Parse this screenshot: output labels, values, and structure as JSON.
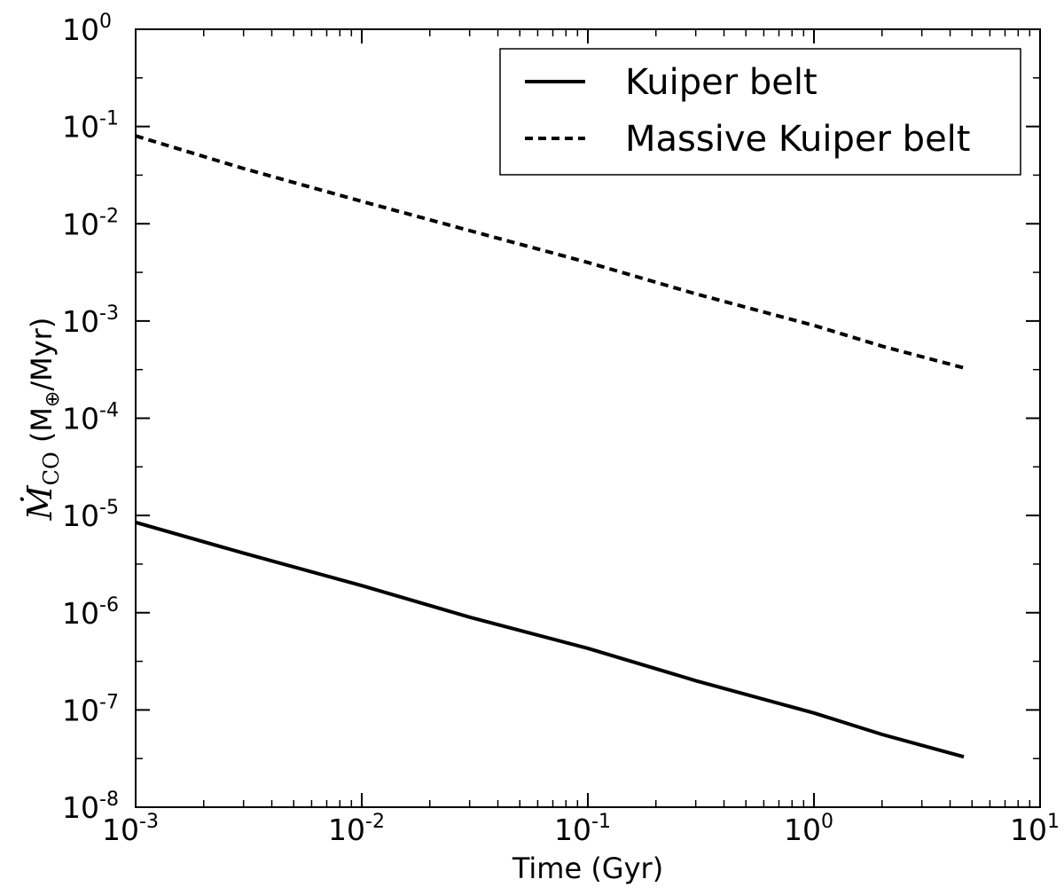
{
  "chart_data": {
    "type": "line",
    "xlabel": "Time (Gyr)",
    "ylabel": {
      "symbol": "Ṁ",
      "subscript": "CO",
      "unit_open": " (M",
      "unit_sub": "⊕",
      "unit_close": "/Myr)"
    },
    "xscale": "log",
    "yscale": "log",
    "xlim": [
      0.001,
      10
    ],
    "ylim": [
      1e-08,
      1
    ],
    "x_ticks": [
      {
        "base": "10",
        "exp": "-3"
      },
      {
        "base": "10",
        "exp": "-2"
      },
      {
        "base": "10",
        "exp": "-1"
      },
      {
        "base": "10",
        "exp": "0"
      },
      {
        "base": "10",
        "exp": "1"
      }
    ],
    "y_ticks": [
      {
        "base": "10",
        "exp": "0"
      },
      {
        "base": "10",
        "exp": "-1"
      },
      {
        "base": "10",
        "exp": "-2"
      },
      {
        "base": "10",
        "exp": "-3"
      },
      {
        "base": "10",
        "exp": "-4"
      },
      {
        "base": "10",
        "exp": "-5"
      },
      {
        "base": "10",
        "exp": "-6"
      },
      {
        "base": "10",
        "exp": "-7"
      },
      {
        "base": "10",
        "exp": "-8"
      }
    ],
    "grid": false,
    "legend_position": "top-right",
    "series": [
      {
        "name": "Kuiper belt",
        "style": "solid",
        "color": "#000000",
        "x": [
          0.001,
          0.003,
          0.01,
          0.03,
          0.1,
          0.3,
          1.0,
          2.0,
          4.6
        ],
        "y": [
          8.5e-06,
          4.1e-06,
          1.9e-06,
          9e-07,
          4.3e-07,
          2e-07,
          9.3e-08,
          5.6e-08,
          3.3e-08
        ]
      },
      {
        "name": "Massive Kuiper belt",
        "style": "dashed",
        "color": "#000000",
        "x": [
          0.001,
          0.003,
          0.01,
          0.03,
          0.1,
          0.3,
          1.0,
          2.0,
          4.6
        ],
        "y": [
          0.08,
          0.037,
          0.017,
          0.0085,
          0.004,
          0.0019,
          0.0009,
          0.00055,
          0.00033
        ]
      }
    ]
  }
}
